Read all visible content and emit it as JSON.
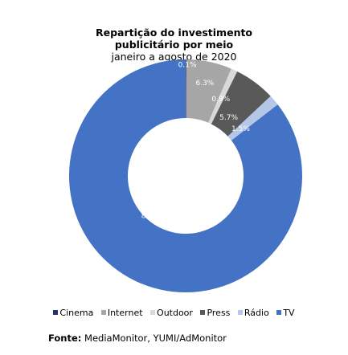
{
  "chart_data": {
    "type": "pie",
    "title": [
      "Repartição do investimento",
      "publicitário por meio"
    ],
    "subtitle": "janeiro a agosto de 2020",
    "slices": [
      {
        "name": "Cinema",
        "value": 0.1,
        "label": "0.1%",
        "color": "#1f3864"
      },
      {
        "name": "Internet",
        "value": 6.3,
        "label": "6.3%",
        "color": "#a6a6a6"
      },
      {
        "name": "Outdoor",
        "value": 0.9,
        "label": "0.9%",
        "color": "#d9d9d9"
      },
      {
        "name": "Press",
        "value": 5.7,
        "label": "5.7%",
        "color": "#595959"
      },
      {
        "name": "Rádio",
        "value": 1.5,
        "label": "1.5%",
        "color": "#b4c7e7"
      },
      {
        "name": "TV",
        "value": 85.5,
        "label": "85.5%",
        "color": "#4472c4"
      }
    ],
    "legend_position": "bottom"
  },
  "source": {
    "label": "Fonte:",
    "text": "MediaMonitor, YUMI/AdMonitor"
  }
}
